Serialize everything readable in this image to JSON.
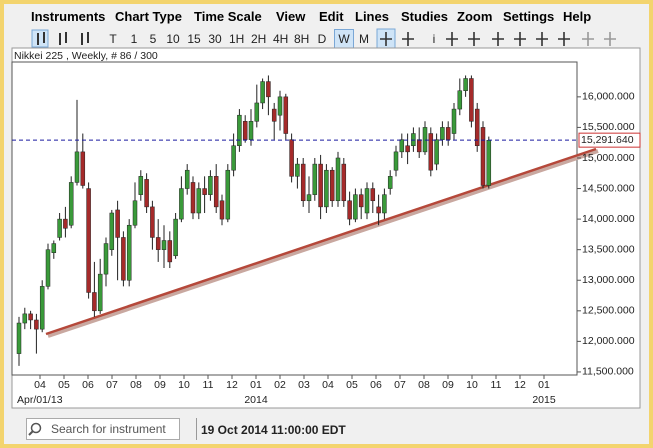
{
  "menu": [
    "Instruments",
    "Chart Type",
    "Time Scale",
    "View",
    "Edit",
    "Lines",
    "Studies",
    "Zoom",
    "Settings",
    "Help"
  ],
  "toolbar": {
    "periods": [
      "T",
      "1",
      "5",
      "10",
      "15",
      "30",
      "1H",
      "2H",
      "4H",
      "8H",
      "D",
      "W",
      "M"
    ],
    "selected": "W",
    "info": "i"
  },
  "status": {
    "search_placeholder": "Search for instrument",
    "timestamp": "19 Oct 2014 11:00:00 EDT"
  },
  "chart_data": {
    "type": "candlestick",
    "title": "Nikkei 225 , Weekly, # 86 / 300",
    "up_color": "#3a9a3a",
    "down_color": "#a52a2a",
    "open": [
      11800,
      12300,
      12450,
      12350,
      12200,
      12900,
      13450,
      13700,
      14000,
      13900,
      14600,
      15100,
      14500,
      12800,
      12500,
      13100,
      13500,
      14150,
      13700,
      13000,
      13900,
      14400,
      14650,
      14200,
      13700,
      13500,
      13650,
      13400,
      14000,
      14500,
      14600,
      14100,
      14500,
      14400,
      14700,
      14300,
      14000,
      14800,
      15200,
      15600,
      15300,
      15600,
      15900,
      16250,
      15800,
      15700,
      16000,
      15300,
      14700,
      14900,
      14300,
      14400,
      14900,
      14200,
      14800,
      14300,
      14900,
      14300,
      14000,
      14400,
      14100,
      14500,
      14200,
      14100,
      14500,
      14800,
      15100,
      15200,
      15200,
      15300,
      15100,
      15400,
      14900,
      15300,
      15500,
      15400,
      15800,
      16100,
      16300,
      15800,
      15500,
      14550
    ],
    "high": [
      12400,
      12550,
      12500,
      12450,
      13000,
      13600,
      13650,
      14100,
      14200,
      14700,
      15950,
      15400,
      14600,
      13300,
      13350,
      13700,
      14150,
      14300,
      13800,
      14000,
      14600,
      14800,
      14750,
      14300,
      14000,
      13900,
      13800,
      14100,
      14700,
      14900,
      14700,
      14600,
      14700,
      14800,
      14900,
      14400,
      14900,
      15400,
      15800,
      15700,
      15800,
      16200,
      16300,
      16350,
      15900,
      16100,
      16050,
      15400,
      15000,
      15000,
      14700,
      15000,
      15050,
      14900,
      14850,
      15100,
      15000,
      14450,
      14500,
      14500,
      14600,
      14600,
      14400,
      14500,
      14800,
      15200,
      15400,
      15400,
      15500,
      15500,
      15600,
      15500,
      15400,
      15600,
      15600,
      15900,
      16300,
      16350,
      16350,
      15900,
      15600,
      15350
    ],
    "low": [
      11600,
      12200,
      12200,
      11800,
      12150,
      12850,
      13350,
      13650,
      13700,
      13850,
      14550,
      14500,
      12700,
      12400,
      12450,
      12900,
      13400,
      13000,
      12900,
      12900,
      13850,
      14300,
      14100,
      13500,
      13300,
      13200,
      13200,
      13350,
      13950,
      14400,
      14000,
      14000,
      14100,
      14300,
      14100,
      13900,
      13950,
      14700,
      15100,
      15250,
      15200,
      15500,
      15800,
      15700,
      15300,
      15450,
      15300,
      14600,
      14500,
      14200,
      14100,
      14300,
      14000,
      14100,
      14200,
      14200,
      14200,
      13900,
      13950,
      14000,
      14000,
      14100,
      13900,
      14000,
      14400,
      14700,
      15000,
      14900,
      15100,
      15000,
      15050,
      14700,
      14800,
      15200,
      15200,
      15300,
      15700,
      16000,
      15500,
      15100,
      14500,
      14500
    ],
    "close": [
      12300,
      12450,
      12350,
      12200,
      12900,
      13500,
      13600,
      14000,
      13850,
      14600,
      15100,
      14550,
      12800,
      12500,
      13100,
      13600,
      14100,
      13700,
      13000,
      13900,
      14300,
      14700,
      14200,
      13700,
      13500,
      13650,
      13300,
      14000,
      14500,
      14800,
      14100,
      14500,
      14400,
      14700,
      14200,
      14000,
      14800,
      15200,
      15700,
      15300,
      15600,
      15900,
      16250,
      16000,
      15600,
      16000,
      15400,
      14700,
      14900,
      14300,
      14400,
      14900,
      14200,
      14800,
      14300,
      15000,
      14300,
      14000,
      14400,
      14200,
      14500,
      14300,
      14100,
      14400,
      14700,
      15100,
      15300,
      15100,
      15400,
      15100,
      15500,
      14800,
      15300,
      15500,
      15300,
      15800,
      16100,
      16300,
      15600,
      15200,
      14550,
      15290
    ],
    "x_labels": [
      "04",
      "05",
      "06",
      "07",
      "08",
      "09",
      "10",
      "11",
      "12",
      "01",
      "02",
      "03",
      "04",
      "05",
      "06",
      "07",
      "08",
      "09",
      "10",
      "11",
      "12",
      "01"
    ],
    "x_labels_major": [
      "Apr/01/13",
      "2014",
      "2015"
    ],
    "ylim": [
      11450,
      16570
    ],
    "yticks": [
      {
        "value": 11500,
        "label": "11,500.000"
      },
      {
        "value": 12000,
        "label": "12,000.000"
      },
      {
        "value": 12500,
        "label": "12,500.000"
      },
      {
        "value": 13000,
        "label": "13,000.000"
      },
      {
        "value": 13500,
        "label": "13,500.000"
      },
      {
        "value": 14000,
        "label": "14,000.000"
      },
      {
        "value": 14500,
        "label": "14,500.000"
      },
      {
        "value": 15000,
        "label": "15,000.000"
      },
      {
        "value": 15500,
        "label": "15,500.000"
      },
      {
        "value": 16000,
        "label": "16,000.000"
      }
    ],
    "last_price": {
      "value": 15291.64,
      "label": "15,291.640"
    },
    "last_price_color": "#1a1aa0"
  }
}
